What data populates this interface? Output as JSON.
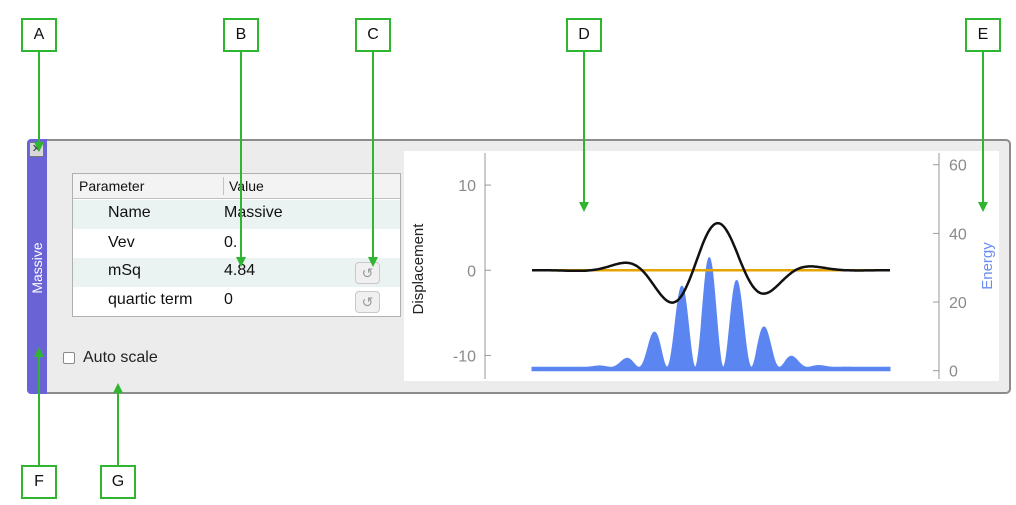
{
  "callouts": [
    "A",
    "B",
    "C",
    "D",
    "E",
    "F",
    "G"
  ],
  "side_tab": {
    "label": "Massive",
    "color": "#6a63d6"
  },
  "table": {
    "headers": {
      "parameter": "Parameter",
      "value": "Value"
    },
    "rows": [
      {
        "name": "Name",
        "value": "Massive"
      },
      {
        "name": "Vev",
        "value": "0."
      },
      {
        "name": "mSq",
        "value": "4.84"
      },
      {
        "name": "quartic term",
        "value": "0"
      }
    ]
  },
  "autoscale": {
    "label": "Auto scale",
    "checked": false
  },
  "icons": {
    "close": "close-icon",
    "revert": "revert-icon"
  },
  "chart_data": {
    "type": "line",
    "ylabel_left": "Displacement",
    "ylabel_right": "Energy",
    "left_ticks": [
      10,
      0,
      -10
    ],
    "right_ticks": [
      60,
      40,
      20,
      0
    ],
    "left_ylim": [
      -13,
      14
    ],
    "right_ylim": [
      -3,
      64
    ],
    "xlim": [
      0,
      1
    ],
    "colors": {
      "displacement": "#111111",
      "vev": "#e6a400",
      "energy": "#5b86f2",
      "right_label": "#6b8df0"
    }
  }
}
